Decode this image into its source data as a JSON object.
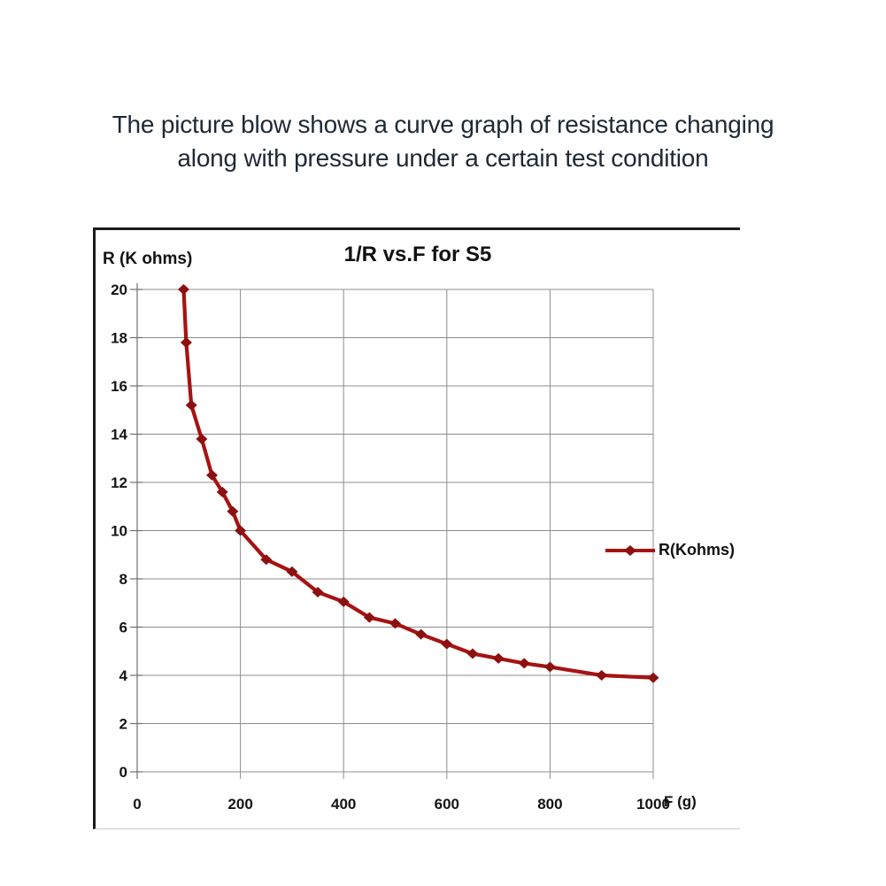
{
  "caption": {
    "line1": "The picture blow shows a curve graph of resistance changing",
    "line2": "along with pressure under a certain test condition"
  },
  "chart_data": {
    "type": "line",
    "title": "1/R vs.F for S5",
    "y_axis_label": "R (K ohms)",
    "x_axis_label": "F (g)",
    "legend_label": "R(Kohms)",
    "legend_position": "middle-right",
    "grid": true,
    "xlim": [
      0,
      1000
    ],
    "ylim": [
      0,
      20
    ],
    "x_ticks": [
      0,
      200,
      400,
      600,
      800,
      1000
    ],
    "y_ticks": [
      0,
      2,
      4,
      6,
      8,
      10,
      12,
      14,
      16,
      18,
      20
    ],
    "series": [
      {
        "name": "R(Kohms)",
        "marker": "diamond",
        "points": [
          [
            90,
            20
          ],
          [
            95,
            17.8
          ],
          [
            105,
            15.2
          ],
          [
            125,
            13.8
          ],
          [
            145,
            12.3
          ],
          [
            165,
            11.6
          ],
          [
            185,
            10.8
          ],
          [
            200,
            10.0
          ],
          [
            250,
            8.8
          ],
          [
            300,
            8.3
          ],
          [
            350,
            7.45
          ],
          [
            400,
            7.05
          ],
          [
            450,
            6.4
          ],
          [
            500,
            6.15
          ],
          [
            550,
            5.7
          ],
          [
            600,
            5.3
          ],
          [
            650,
            4.9
          ],
          [
            700,
            4.7
          ],
          [
            750,
            4.5
          ],
          [
            800,
            4.35
          ],
          [
            900,
            4.0
          ],
          [
            1000,
            3.9
          ]
        ]
      }
    ]
  },
  "colors": {
    "series_line": "#A61313",
    "series_marker": "#8C1010",
    "gridline": "#8c8c8c",
    "axis": "#6f6f6f",
    "text": "#141414",
    "frame": "#1b1b1b",
    "caption_text": "#1d2935"
  }
}
